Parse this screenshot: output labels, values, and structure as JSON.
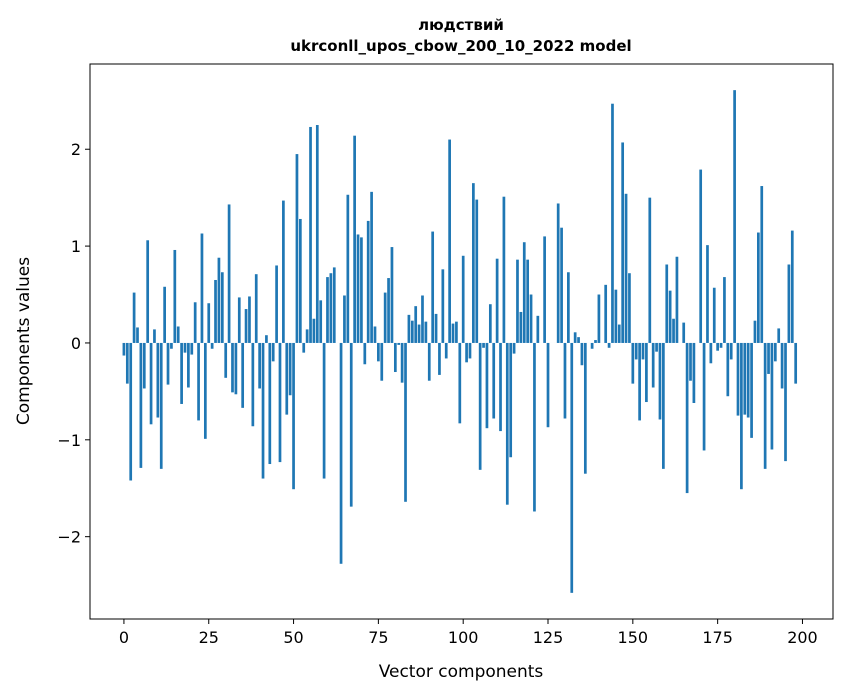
{
  "chart_data": {
    "type": "bar",
    "title_line1": "людствий",
    "title_line2": "ukrconll_upos_cbow_200_10_2022 model",
    "xlabel": "Vector components",
    "ylabel": "Components values",
    "xlim": [
      -10,
      209
    ],
    "ylim": [
      -2.85,
      2.88
    ],
    "xticks": [
      0,
      25,
      50,
      75,
      100,
      125,
      150,
      175,
      200
    ],
    "xtick_labels": [
      "0",
      "25",
      "50",
      "75",
      "100",
      "125",
      "150",
      "175",
      "200"
    ],
    "yticks": [
      -2,
      -1,
      0,
      1,
      2
    ],
    "ytick_labels": [
      "−2",
      "−1",
      "0",
      "1",
      "2"
    ],
    "bar_color": "#1f77b4",
    "values": [
      -0.13,
      -0.42,
      -1.42,
      0.52,
      0.16,
      -1.29,
      -0.47,
      1.06,
      -0.84,
      0.14,
      -0.77,
      -1.3,
      0.58,
      -0.43,
      -0.06,
      0.96,
      0.17,
      -0.63,
      -0.1,
      -0.46,
      -0.12,
      0.42,
      -0.8,
      1.13,
      -0.99,
      0.41,
      -0.06,
      0.65,
      0.88,
      0.73,
      -0.36,
      1.43,
      -0.51,
      -0.53,
      0.47,
      -0.67,
      0.35,
      0.48,
      -0.86,
      0.71,
      -0.47,
      -1.4,
      0.08,
      -1.25,
      -0.19,
      0.8,
      -1.23,
      1.47,
      -0.74,
      -0.54,
      -1.51,
      1.95,
      1.28,
      -0.1,
      0.14,
      2.23,
      0.25,
      2.25,
      0.44,
      -1.4,
      0.68,
      0.72,
      0.78,
      0.0,
      -2.28,
      0.49,
      1.53,
      -1.69,
      2.14,
      1.12,
      1.09,
      -0.22,
      1.26,
      1.56,
      0.17,
      -0.19,
      -0.39,
      0.52,
      0.67,
      0.99,
      -0.3,
      -0.02,
      -0.41,
      -1.64,
      0.29,
      0.23,
      0.38,
      0.19,
      0.49,
      0.22,
      -0.39,
      1.15,
      0.3,
      -0.33,
      0.76,
      -0.16,
      2.1,
      0.2,
      0.22,
      -0.83,
      0.9,
      -0.2,
      -0.16,
      1.65,
      1.48,
      -1.31,
      -0.05,
      -0.88,
      0.4,
      -0.78,
      0.87,
      -0.91,
      1.51,
      -1.67,
      -1.18,
      -0.11,
      0.86,
      0.32,
      1.04,
      0.86,
      0.5,
      -1.74,
      0.28,
      0.0,
      1.1,
      -0.87,
      0.0,
      0.0,
      1.44,
      1.19,
      -0.78,
      0.73,
      -2.58,
      0.11,
      0.06,
      -0.23,
      -1.35,
      0.0,
      -0.06,
      0.03,
      0.5,
      0.0,
      0.6,
      -0.05,
      2.47,
      0.55,
      0.19,
      2.07,
      1.54,
      0.72,
      -0.42,
      -0.17,
      -0.8,
      -0.17,
      -0.61,
      1.5,
      -0.46,
      -0.09,
      -0.79,
      -1.3,
      0.81,
      0.54,
      0.25,
      0.89,
      0.0,
      0.21,
      -1.55,
      -0.39,
      -0.62,
      0.0,
      1.79,
      -1.11,
      1.01,
      -0.21,
      0.57,
      -0.08,
      -0.05,
      0.68,
      -0.55,
      -0.17,
      2.61,
      -0.75,
      -1.51,
      -0.74,
      -0.77,
      -0.98,
      0.23,
      1.14,
      1.62,
      -1.3,
      -0.32,
      -1.1,
      -0.19,
      0.15,
      -0.47,
      -1.22,
      0.81,
      1.16,
      -0.42
    ]
  }
}
